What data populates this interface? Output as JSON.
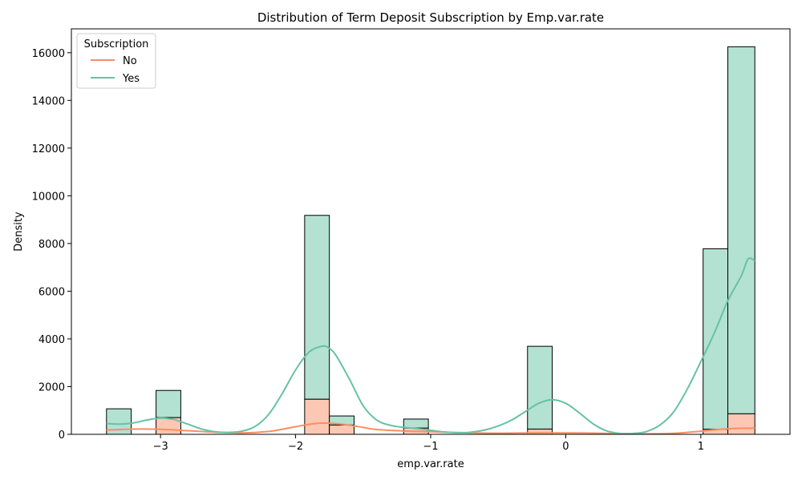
{
  "chart_data": {
    "type": "bar",
    "title": "Distribution of Term Deposit Subscription by Emp.var.rate",
    "xlabel": "emp.var.rate",
    "ylabel": "Density",
    "xlim": [
      -3.66,
      1.66
    ],
    "ylim": [
      0,
      17000
    ],
    "x_ticks": [
      -3,
      -2,
      -1,
      0,
      1
    ],
    "x_tick_labels": [
      "−3",
      "−2",
      "−1",
      "0",
      "1"
    ],
    "y_ticks": [
      0,
      2000,
      4000,
      6000,
      8000,
      10000,
      12000,
      14000,
      16000
    ],
    "y_tick_labels": [
      "0",
      "2000",
      "4000",
      "6000",
      "8000",
      "10000",
      "12000",
      "14000",
      "16000"
    ],
    "grid": false,
    "stacked": true,
    "bins": [
      {
        "x0": -3.4,
        "x1": -3.217,
        "no": 0,
        "total": 1070
      },
      {
        "x0": -3.033,
        "x1": -2.85,
        "no": 700,
        "total": 1840
      },
      {
        "x0": -1.933,
        "x1": -1.75,
        "no": 1470,
        "total": 9180
      },
      {
        "x0": -1.75,
        "x1": -1.567,
        "no": 390,
        "total": 770
      },
      {
        "x0": -1.2,
        "x1": -1.017,
        "no": 260,
        "total": 640
      },
      {
        "x0": -0.283,
        "x1": -0.1,
        "no": 220,
        "total": 3690
      },
      {
        "x0": 1.017,
        "x1": 1.2,
        "no": 210,
        "total": 7780
      },
      {
        "x0": 1.2,
        "x1": 1.4,
        "no": 860,
        "total": 16250
      }
    ],
    "series": [
      {
        "name": "No",
        "color": "#fc8d62",
        "fill": "#fdc8b3",
        "kde_x": [
          -3.4,
          -3.2,
          -3.0,
          -2.8,
          -2.6,
          -2.4,
          -2.2,
          -2.0,
          -1.9,
          -1.8,
          -1.7,
          -1.6,
          -1.5,
          -1.4,
          -1.2,
          -1.0,
          -0.8,
          -0.6,
          -0.4,
          -0.2,
          -0.1,
          0.0,
          0.2,
          0.4,
          0.6,
          0.8,
          1.0,
          1.1,
          1.2,
          1.3,
          1.4
        ],
        "kde_y": [
          180,
          220,
          210,
          150,
          90,
          60,
          120,
          320,
          420,
          470,
          450,
          380,
          290,
          200,
          140,
          110,
          70,
          50,
          50,
          60,
          60,
          60,
          50,
          30,
          20,
          40,
          130,
          190,
          230,
          250,
          260
        ]
      },
      {
        "name": "Yes",
        "color": "#66c2a5",
        "fill": "#b3e1d2",
        "kde_x": [
          -3.4,
          -3.3,
          -3.2,
          -3.1,
          -3.0,
          -2.9,
          -2.8,
          -2.7,
          -2.6,
          -2.5,
          -2.4,
          -2.3,
          -2.2,
          -2.1,
          -2.0,
          -1.9,
          -1.8,
          -1.75,
          -1.7,
          -1.6,
          -1.5,
          -1.4,
          -1.3,
          -1.2,
          -1.1,
          -1.0,
          -0.9,
          -0.8,
          -0.7,
          -0.6,
          -0.5,
          -0.4,
          -0.3,
          -0.2,
          -0.1,
          0.0,
          0.1,
          0.2,
          0.3,
          0.4,
          0.5,
          0.6,
          0.7,
          0.8,
          0.9,
          1.0,
          1.1,
          1.2,
          1.3,
          1.35,
          1.4
        ],
        "kde_y": [
          450,
          430,
          480,
          600,
          680,
          620,
          430,
          230,
          110,
          80,
          130,
          330,
          830,
          1700,
          2700,
          3450,
          3700,
          3600,
          3300,
          2300,
          1200,
          600,
          380,
          290,
          240,
          170,
          100,
          70,
          90,
          180,
          350,
          600,
          950,
          1300,
          1450,
          1300,
          900,
          450,
          150,
          40,
          40,
          120,
          400,
          950,
          1900,
          3050,
          4250,
          5600,
          6650,
          7350,
          7280
        ]
      }
    ],
    "legend": {
      "title": "Subscription",
      "position": "top-left",
      "entries": [
        "No",
        "Yes"
      ]
    }
  }
}
